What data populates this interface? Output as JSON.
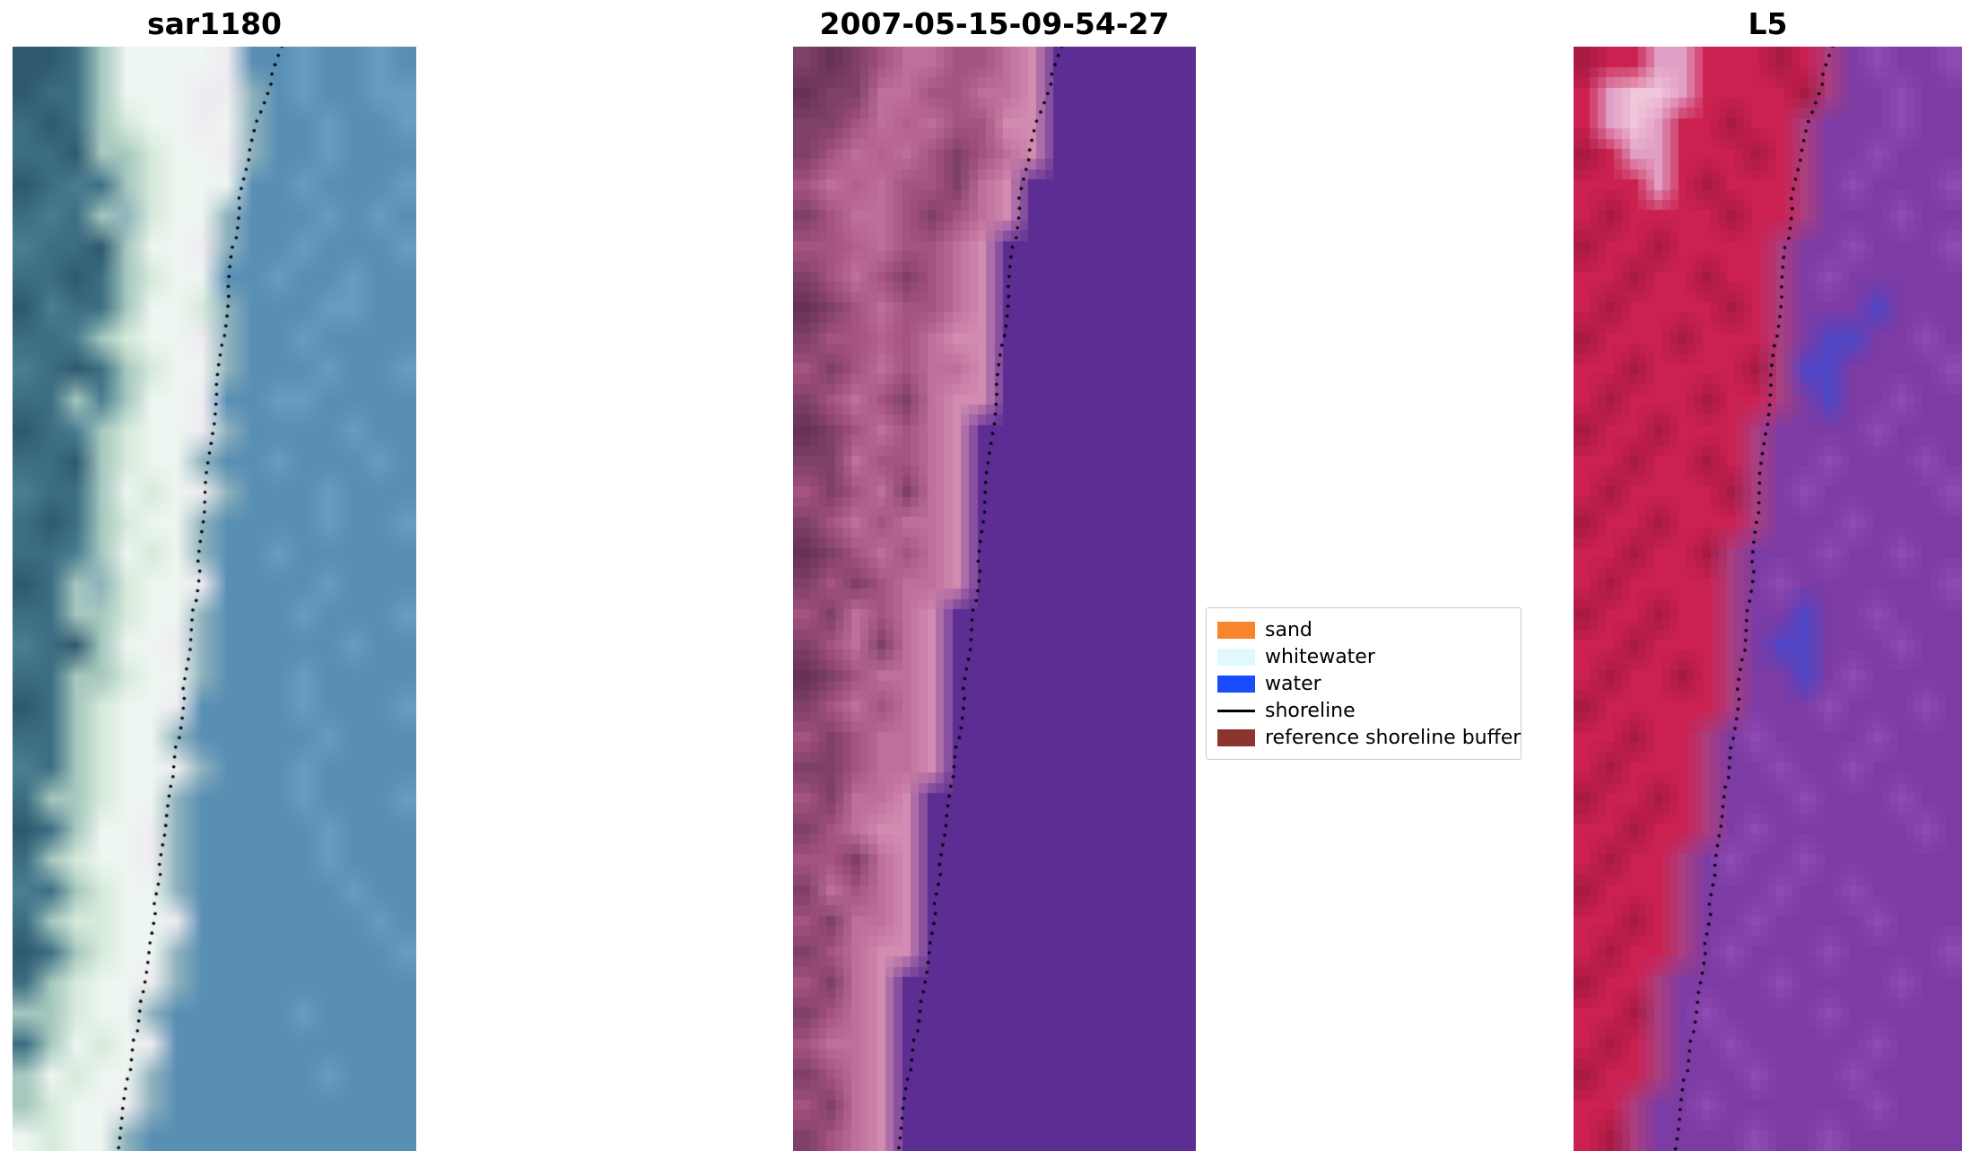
{
  "chart_data": {
    "type": "heatmap",
    "panels": [
      {
        "title": "sar1180",
        "kind": "sar-image",
        "smooth": true,
        "palette": {
          "a": "#3d6e84",
          "b": "#5a8fb4",
          "c": "#699ec2",
          "e": "#eef6f1",
          "f": "#d6ebdb",
          "g": "#a6c8bf",
          "h": "#2f5a6e",
          "i": "#8fb3bd",
          "j": "#f0ecf2",
          "k": "#4b7f93"
        },
        "rows": [
          "hhageeeejbbcbbcb",
          "haageeejjibcbbcc",
          "ahagfeejeibbcbbc",
          "aahggfeejibbcbbb",
          "hakagfeeebbcbbbc",
          "akagifeeibbbcbcb",
          "kaahgeejibbcbbbc",
          "aahagfeebbcbbcbb",
          "hkaageefibbbccbb",
          "aakgfeejibbcbbbb",
          "kahagfeeibbbcbbc",
          "aagkgeejbbccbbbb",
          "hakgfeejibbbbcbb",
          "aahgfeeibbcbbbcb",
          "kaagefejibbbcbbb",
          "ahagfeeibbbbcbbc",
          "aakgefeibbcbbbbb",
          "hagifeejbbbbcbbb",
          "aaggfeeibbbcbbbc",
          "kahgeejibbbbbcbb",
          "aaggfeeibbbcbbbb",
          "hagfeejbbbbcbbbc",
          "aagfeeibbbbbcbbb",
          "kagfeejibbbcbbbb",
          "aggfeeibbbbcbbbc",
          "hageejibbbbbcbbb",
          "agfeejibbbbbcbbb",
          "kagfeeibbbbbbcbb",
          "agffeejbbbbbbbcb",
          "hagfeeibbbbbbbbc",
          "agfeejibbbbbbbbb",
          "ggfeeibbbbbcbbbb",
          "agefejbbbbbbbbbb",
          "gefeeibbbbbbcbbb",
          "gfeejibbbbbbbbbb",
          "efeeibbbbbbbbbbb"
        ]
      },
      {
        "title": "2007-05-15-09-54-27",
        "kind": "classified-image",
        "smooth": false,
        "palette": {
          "p": "#a5537f",
          "q": "#bf6f9c",
          "r": "#d28cb2",
          "s": "#7f4067",
          "v": "#b55f90",
          "w": "#663157",
          "t": "#5c2d92"
        },
        "rows": [
          "swspqqppqrtttttt",
          "wssqqppqqrtttttt",
          "sspqvqpprrtttttt",
          "spqvqpspqrtttttt",
          "pqvqppsqrttttttt",
          "spqqpspqrttttttt",
          "ppvqppqrtttttttt",
          "spqpspqrtttttttt",
          "wspqppqrtttttttt",
          "sppvpqrrtttttttt",
          "pspqpqqrtttttttt",
          "spqpsqrrtttttttt",
          "wspqpqrttttttttt",
          "ssqppqrttttttttt",
          "pspqsqrttttttttt",
          "spqpqqrttttttttt",
          "wspqpqrttttttttt",
          "spspqqrttttttttt",
          "psqpqrtttttttttt",
          "spqsqrtttttttttt",
          "wspqqrtttttttttt",
          "spqpqrtttttttttt",
          "pspqqrtttttttttt",
          "sspqqrtttttttttt",
          "psqqrttttttttttt",
          "spqrrttttttttttt",
          "ppsqrttttttttttt",
          "sqpqrttttttttttt",
          "psqqrttttttttttt",
          "spqrrttttttttttt",
          "psqrtttttttttttt",
          "spqrtttttttttttt",
          "pqqrtttttttttttt",
          "spqrtttttttttttt",
          "psqrtttttttttttt",
          "spqrtttttttttttt"
        ]
      },
      {
        "title": "L5",
        "kind": "landsat-image",
        "smooth": false,
        "palette": {
          "R": "#cb2150",
          "D": "#a81a42",
          "L": "#e29fc5",
          "M": "#f0c6da",
          "K": "#aa3f80",
          "P": "#7d3ba4",
          "O": "#8e4bb3",
          "U": "#4f46c5"
        },
        "rows": [
          "DRRLLRRRDRKPOPPO",
          "RLMMLRRRRDKPPOPP",
          "RLMLRRDRRKPPPOPP",
          "DRLLRRRDRKPPOPPP",
          "RRRLRDRRRKPOPPPO",
          "RDRRRRDRRKPPPOPP",
          "DRRDRRRRKPPOPPPO",
          "RRDRRDRRKPOPPPPP",
          "RDRRRRDRKPPPUPPP",
          "DRRRDRRRKPUUPPOP",
          "RRDRRRRDKUUPPPPO",
          "RDRRRDRRKPUPPOPP",
          "DRRDRRRKPPPPOPPP",
          "RRDRRDRKPPOPPPOP",
          "RDRRRRDKPOPPPPPO",
          "DRRDRRRKPPPOPPPP",
          "RRDRRDKPPPOPPOPP",
          "RDRRRRKPOPPPPPPO",
          "DRRDRRKPPUPPOPPP",
          "RRDRRRKPUUPPPOPP",
          "RDRRDRKPPUPOPPPP",
          "DRRRRRKPPPOPPPOP",
          "RRDRRKPOPPPPOPPP",
          "RDRRRKPPOPPOPPPP",
          "DRRDRKPPPOPPPOPP",
          "RRDRRKPOPPPPPPOP",
          "RDRRKPOPPOPPPPPP",
          "DRRRKPPPOPPOPPPP",
          "RRDRKPPOPPPPOPPP",
          "RDRRKPOPPPOPPPPO",
          "DRRKPPPPOPPPPOPP",
          "RRDKPOPPPPOPPPPP",
          "RDRKPPOPPPPPOPPP",
          "DRRKPPPOPPPOPPPP",
          "RRKPPOPPPPPPOPPP",
          "RDKPPPPOPPOPPPPP"
        ]
      }
    ],
    "shoreline": {
      "color": "#000000",
      "style": "dotted",
      "points": [
        [
          0.67,
          0.0
        ],
        [
          0.64,
          0.03
        ],
        [
          0.612,
          0.062
        ],
        [
          0.585,
          0.1
        ],
        [
          0.563,
          0.14
        ],
        [
          0.548,
          0.18
        ],
        [
          0.534,
          0.222
        ],
        [
          0.522,
          0.264
        ],
        [
          0.508,
          0.306
        ],
        [
          0.494,
          0.348
        ],
        [
          0.482,
          0.39
        ],
        [
          0.472,
          0.43
        ],
        [
          0.462,
          0.47
        ],
        [
          0.45,
          0.51
        ],
        [
          0.437,
          0.55
        ],
        [
          0.423,
          0.59
        ],
        [
          0.409,
          0.63
        ],
        [
          0.395,
          0.668
        ],
        [
          0.381,
          0.706
        ],
        [
          0.366,
          0.744
        ],
        [
          0.351,
          0.782
        ],
        [
          0.336,
          0.82
        ],
        [
          0.32,
          0.858
        ],
        [
          0.304,
          0.896
        ],
        [
          0.288,
          0.934
        ],
        [
          0.272,
          0.968
        ],
        [
          0.258,
          1.0
        ]
      ]
    },
    "legend": {
      "position": "center-right of middle panel",
      "entries": [
        {
          "label": "sand",
          "color": "#f8842c",
          "type": "patch"
        },
        {
          "label": "whitewater",
          "color": "#dff9fd",
          "type": "patch"
        },
        {
          "label": "water",
          "color": "#1a4dff",
          "type": "patch"
        },
        {
          "label": "shoreline",
          "color": "#000000",
          "type": "line"
        },
        {
          "label": "reference shoreline buffer",
          "color": "#8b352c",
          "type": "patch"
        }
      ]
    }
  }
}
